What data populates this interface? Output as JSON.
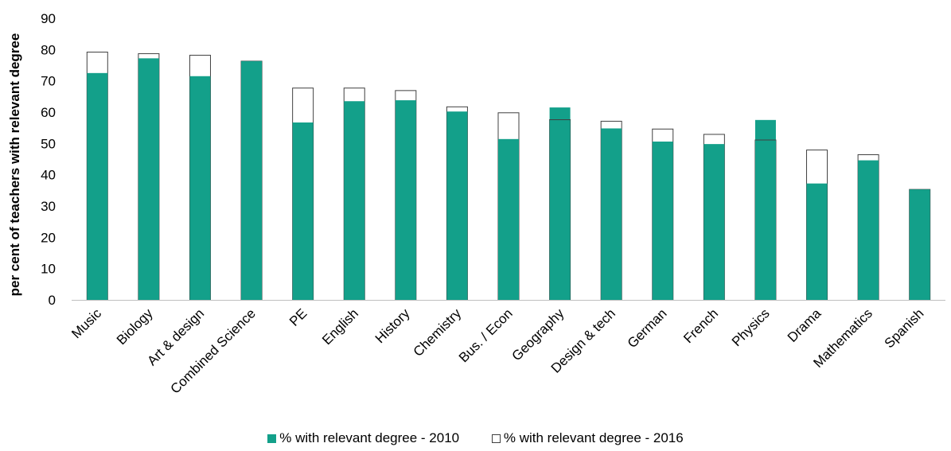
{
  "chart_data": {
    "type": "bar",
    "title": "",
    "xlabel": "",
    "ylabel": "per cent of teachers with relevant degree",
    "ylim": [
      0,
      90
    ],
    "yticks": [
      0,
      10,
      20,
      30,
      40,
      50,
      60,
      70,
      80,
      90
    ],
    "grid": false,
    "legend_position": "bottom",
    "categories": [
      "Music",
      "Biology",
      "Art & design",
      "Combined Science",
      "PE",
      "English",
      "History",
      "Chemistry",
      "Bus. / Econ",
      "Geography",
      "Design & tech",
      "German",
      "French",
      "Physics",
      "Drama",
      "Mathematics",
      "Spanish"
    ],
    "series": [
      {
        "name": "% with relevant degree - 2010",
        "color": "#13a08a",
        "values": [
          72.5,
          77.2,
          71.5,
          76.3,
          56.7,
          63.5,
          63.8,
          60.2,
          51.4,
          61.5,
          54.8,
          50.6,
          49.8,
          57.5,
          37.2,
          44.6,
          35.3
        ]
      },
      {
        "name": "% with relevant degree - 2016",
        "color": "#ffffff",
        "values": [
          79.2,
          78.7,
          78.2,
          76.3,
          67.7,
          67.7,
          66.9,
          61.7,
          59.8,
          57.6,
          57.1,
          54.6,
          52.9,
          51.1,
          47.9,
          46.4,
          35.3
        ]
      }
    ]
  }
}
